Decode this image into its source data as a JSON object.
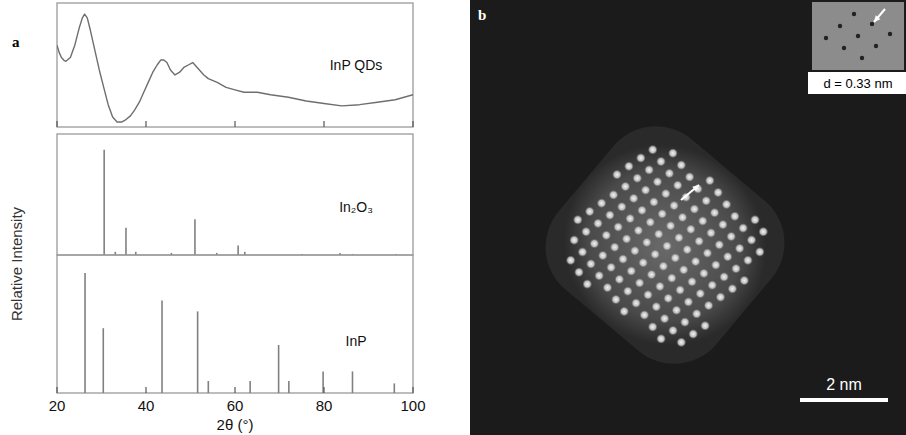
{
  "chart_data": [
    {
      "type": "line",
      "tick_labels": false,
      "grid": false,
      "xlim": [
        20,
        100
      ],
      "ylim": [
        0,
        100
      ],
      "xticks": [
        20,
        40,
        60,
        80,
        100
      ],
      "x": [
        20,
        20.5,
        21,
        21.5,
        22,
        23,
        24,
        25,
        25.7,
        26.2,
        26.8,
        27.5,
        28.5,
        29.5,
        30.5,
        31.5,
        32.5,
        33.5,
        34.5,
        35.5,
        36.5,
        37.5,
        38.5,
        39.5,
        40.5,
        41.5,
        42.5,
        43.3,
        44,
        44.7,
        45.5,
        46.5,
        47.5,
        48.5,
        49.5,
        50.5,
        51,
        52,
        53,
        54,
        56,
        58,
        60,
        62,
        65,
        68,
        72,
        76,
        80,
        84,
        88,
        92,
        96,
        100
      ],
      "series": [
        {
          "name": "InP QDs",
          "color": "#6e6e6e",
          "values": [
            66,
            60,
            56,
            54,
            53,
            56,
            66,
            80,
            88,
            91,
            88,
            78,
            62,
            46,
            32,
            18,
            8,
            4,
            4,
            6,
            9,
            14,
            20,
            28,
            36,
            44,
            50,
            54,
            54,
            52,
            46,
            42,
            44,
            48,
            50,
            52,
            50,
            46,
            42,
            39,
            36,
            32,
            30,
            28,
            28,
            26,
            24,
            21,
            19,
            17,
            18,
            20,
            22,
            26
          ]
        }
      ]
    },
    {
      "type": "stick",
      "tick_labels": false,
      "grid": false,
      "xlim": [
        20,
        100
      ],
      "ylim": [
        0,
        115
      ],
      "x": [
        30.6,
        33.1,
        35.5,
        37.7,
        45.7,
        51.0,
        55.9,
        60.7,
        62.2,
        75.1,
        83.6,
        86.4,
        96.1
      ],
      "series": [
        {
          "name": "In₂O₃",
          "color": "#808080",
          "values": [
            100,
            3,
            26,
            3,
            2,
            34,
            2,
            9,
            3,
            1,
            2,
            1,
            1
          ]
        }
      ]
    },
    {
      "type": "stick",
      "tick_labels": "x",
      "grid": false,
      "xlim": [
        20,
        100
      ],
      "ylim": [
        0,
        115
      ],
      "xticks": [
        20,
        40,
        60,
        80,
        100
      ],
      "xlabel": "2θ (°)",
      "x": [
        26.3,
        30.4,
        43.6,
        51.6,
        54.0,
        63.4,
        69.8,
        72.1,
        79.8,
        86.4,
        95.8
      ],
      "series": [
        {
          "name": "InP",
          "color": "#808080",
          "values": [
            100,
            54,
            77,
            68,
            10,
            10,
            40,
            10,
            18,
            18,
            8
          ]
        }
      ]
    }
  ],
  "figure": {
    "panel_a": "a",
    "panel_b": "b",
    "ylabel": "Relative Intensity"
  },
  "micrograph": {
    "scale_bar": {
      "value": 2,
      "label": "2 nm"
    },
    "d_spacing": {
      "value": 0.33,
      "label": "d = 0.33 nm"
    }
  }
}
